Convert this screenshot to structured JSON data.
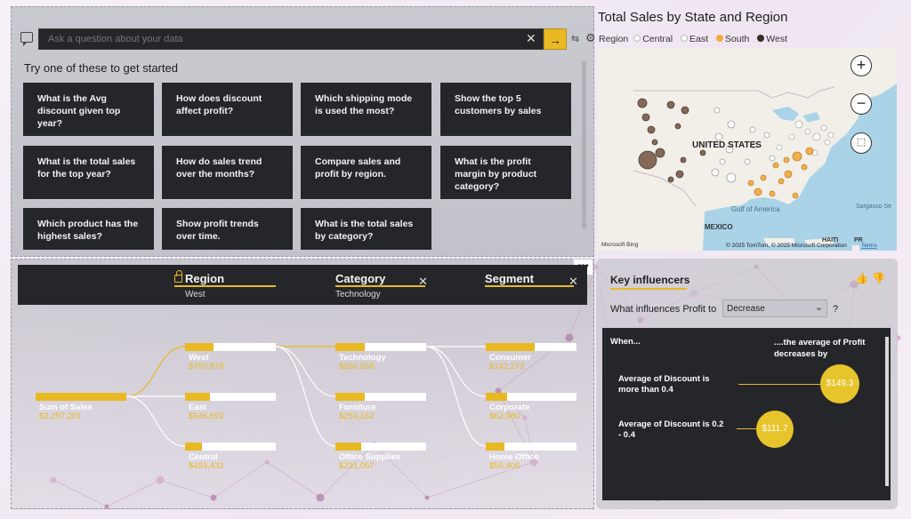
{
  "qa": {
    "input_placeholder": "Ask a question about your data",
    "clear_glyph": "✕",
    "submit_glyph": "→",
    "heading": "Try one of these to get started",
    "suggestions": [
      "What is the Avg discount given top year?",
      "How does discount affect profit?",
      "Which shipping mode is used the most?",
      "Show the top 5 customers by sales",
      "What is the total sales for the top year?",
      "How do sales trend over the months?",
      "Compare sales and profit by region.",
      "What is the profit margin by product category?",
      "Which product has the highest sales?",
      "Show profit trends over time.",
      "What is the total sales by category?"
    ]
  },
  "map": {
    "title": "Total Sales by State and Region",
    "legend_title": "Region",
    "legend": [
      {
        "label": "Central",
        "color": "#ffffff"
      },
      {
        "label": "East",
        "color": "#ffffff"
      },
      {
        "label": "South",
        "color": "#f2a93b"
      },
      {
        "label": "West",
        "color": "#3a2a22"
      }
    ],
    "labels": {
      "country": "UNITED STATES",
      "mexico": "MEXICO",
      "gulf": "Gulf of America",
      "sargasso": "Sargasso Se",
      "haiti": "HAITI",
      "pr": "PR",
      "bing": "Microsoft Bing",
      "copyright": "© 2025 TomTom, © 2025 Microsoft Corporation",
      "terms": "Terms"
    },
    "zoom_in_glyph": "+",
    "zoom_out_glyph": "−"
  },
  "decomp": {
    "more_glyph": "•••",
    "headers": [
      {
        "title": "Region",
        "sub": "West"
      },
      {
        "title": "Category",
        "sub": "Technology"
      },
      {
        "title": "Segment",
        "sub": ""
      }
    ],
    "close_glyph": "✕",
    "root": {
      "label": "Sum of Sales",
      "value": "$2,297,201",
      "fraction": 1.0
    },
    "region_nodes": [
      {
        "label": "West",
        "value": "$750,878",
        "fraction": 0.31
      },
      {
        "label": "East",
        "value": "$646,692",
        "fraction": 0.27
      },
      {
        "label": "Central",
        "value": "$453,432",
        "fraction": 0.19
      }
    ],
    "category_nodes": [
      {
        "label": "Technology",
        "value": "$260,658",
        "fraction": 0.32
      },
      {
        "label": "Furniture",
        "value": "$259,162",
        "fraction": 0.32
      },
      {
        "label": "Office Supplies",
        "value": "$231,057",
        "fraction": 0.28
      }
    ],
    "segment_nodes": [
      {
        "label": "Consumer",
        "value": "$142,272",
        "fraction": 0.54
      },
      {
        "label": "Corporate",
        "value": "$62,980",
        "fraction": 0.24
      },
      {
        "label": "Home Office",
        "value": "$55,406",
        "fraction": 0.21
      }
    ]
  },
  "key_influencers": {
    "title": "Key influencers",
    "question": "What influences Profit to",
    "select_value": "Decrease",
    "help": "?",
    "when_label": "When...",
    "avg_label": "....the average of Profit decreases by",
    "factors": [
      {
        "text": "Average of Discount is more than 0.4",
        "value": "$149.3"
      },
      {
        "text": "Average of Discount is 0.2 - 0.4",
        "value": "$111.7"
      }
    ]
  },
  "colors": {
    "accent": "#e8b923",
    "dark_card": "#25262a",
    "map_water": "#aad3e8",
    "west_bubble": "#3a2a22",
    "south_bubble": "#f2a93b"
  }
}
